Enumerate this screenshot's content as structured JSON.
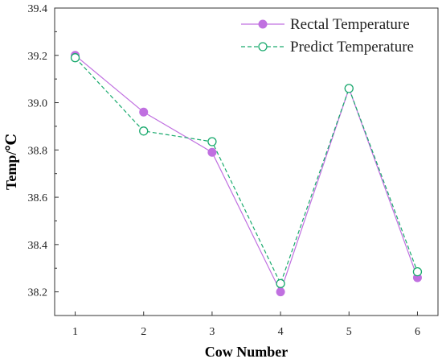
{
  "chart_data": {
    "type": "line",
    "x": [
      1,
      2,
      3,
      4,
      5,
      6
    ],
    "xlabel": "Cow Number",
    "ylabel": "Temp/℃",
    "xlim": [
      0.7,
      6.3
    ],
    "ylim": [
      38.1,
      39.4
    ],
    "xticks": [
      1,
      2,
      3,
      4,
      5,
      6
    ],
    "yticks": [
      38.2,
      38.4,
      38.6,
      38.8,
      39.0,
      39.2,
      39.4
    ],
    "ytick_labels": [
      "38.2",
      "38.4",
      "38.6",
      "38.8",
      "39.0",
      "39.2",
      "39.4"
    ],
    "grid": false,
    "legend_position": "top-right",
    "series": [
      {
        "name": "Rectal Temperature",
        "values": [
          39.2,
          38.96,
          38.79,
          38.2,
          39.06,
          38.26
        ],
        "color": "#c070e0",
        "line_style": "solid",
        "marker": "filled-circle"
      },
      {
        "name": "Predict Temperature",
        "values": [
          39.19,
          38.88,
          38.835,
          38.235,
          39.06,
          38.285
        ],
        "color": "#1aaa6e",
        "line_style": "dashed",
        "marker": "open-circle"
      }
    ]
  }
}
